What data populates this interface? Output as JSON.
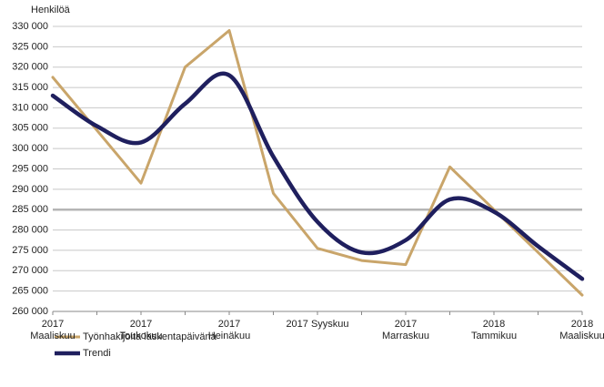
{
  "chart_data": {
    "type": "line",
    "y_label": "Henkilöä",
    "categories": [
      "2017 Maaliskuu",
      null,
      "2017 Toukokuu",
      null,
      "2017 Heinäkuu",
      null,
      "2017 Syyskuu",
      null,
      "2017 Marraskuu",
      null,
      "2018 Tammikuu",
      null,
      "2018 Maaliskuu"
    ],
    "series": [
      {
        "name": "Työnhakijoita laskentapäivänä",
        "color": "#c9a56a",
        "width": 3,
        "smooth": false,
        "values": [
          317500,
          304500,
          291500,
          320000,
          329000,
          289000,
          275500,
          272500,
          271500,
          295500,
          285000,
          274500,
          264000
        ]
      },
      {
        "name": "Trendi",
        "color": "#1f1f5e",
        "width": 4.5,
        "smooth": true,
        "values": [
          313000,
          305500,
          301500,
          311000,
          318000,
          298000,
          282000,
          274500,
          277500,
          287500,
          284500,
          276000,
          268000
        ]
      }
    ],
    "ylim": [
      260000,
      330000
    ],
    "yticks": [
      {
        "value": 260000,
        "label": "260 000"
      },
      {
        "value": 265000,
        "label": "265 000"
      },
      {
        "value": 270000,
        "label": "270 000"
      },
      {
        "value": 275000,
        "label": "275 000"
      },
      {
        "value": 280000,
        "label": "280 000"
      },
      {
        "value": 285000,
        "label": "285 000"
      },
      {
        "value": 290000,
        "label": "290 000"
      },
      {
        "value": 295000,
        "label": "295 000"
      },
      {
        "value": 300000,
        "label": "300 000"
      },
      {
        "value": 305000,
        "label": "305 000"
      },
      {
        "value": 310000,
        "label": "310 000"
      },
      {
        "value": 315000,
        "label": "315 000"
      },
      {
        "value": 320000,
        "label": "320 000"
      },
      {
        "value": 325000,
        "label": "325 000"
      },
      {
        "value": 330000,
        "label": "330 000"
      }
    ],
    "grid": true,
    "highlight_y": 285000,
    "legend": "bottom-left"
  }
}
